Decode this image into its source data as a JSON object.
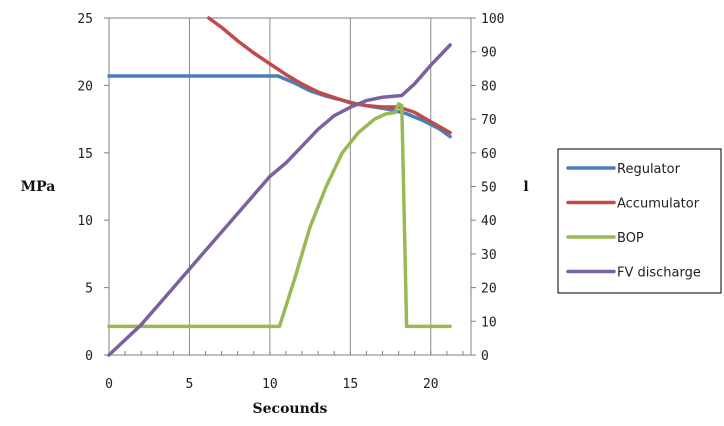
{
  "chart_data": {
    "type": "line",
    "xlabel": "Secounds",
    "ylabel": "MPa",
    "y2label": "l",
    "xlim": [
      0,
      22.5
    ],
    "ylim": [
      0,
      25
    ],
    "y2lim": [
      0,
      100
    ],
    "x_ticks": [
      "0",
      "5",
      "10",
      "15",
      "20"
    ],
    "y_ticks": [
      "0",
      "5",
      "10",
      "15",
      "20",
      "25"
    ],
    "y2_ticks": [
      "0",
      "10",
      "20",
      "30",
      "40",
      "50",
      "60",
      "70",
      "80",
      "90",
      "100"
    ],
    "grid": "vertical",
    "legend_position": "right",
    "series": [
      {
        "name": "Regulator",
        "color": "#4a7ebb",
        "axis": "left",
        "points": [
          [
            0,
            20.7
          ],
          [
            10.5,
            20.7
          ],
          [
            11.5,
            20.2
          ],
          [
            12.5,
            19.6
          ],
          [
            13.5,
            19.2
          ],
          [
            14.5,
            18.9
          ],
          [
            15.5,
            18.6
          ],
          [
            16.5,
            18.4
          ],
          [
            17.5,
            18.2
          ],
          [
            18.5,
            17.9
          ],
          [
            19.5,
            17.4
          ],
          [
            20.5,
            16.8
          ],
          [
            21.2,
            16.2
          ]
        ]
      },
      {
        "name": "Accumulator",
        "color": "#be4b48",
        "axis": "left",
        "points": [
          [
            6.2,
            25.0
          ],
          [
            7.0,
            24.3
          ],
          [
            8.0,
            23.3
          ],
          [
            9.0,
            22.4
          ],
          [
            10.0,
            21.6
          ],
          [
            11.0,
            20.8
          ],
          [
            12.0,
            20.1
          ],
          [
            13.0,
            19.5
          ],
          [
            14.0,
            19.1
          ],
          [
            15.0,
            18.7
          ],
          [
            16.0,
            18.5
          ],
          [
            17.0,
            18.4
          ],
          [
            18.0,
            18.4
          ],
          [
            19.0,
            18.0
          ],
          [
            20.0,
            17.3
          ],
          [
            21.2,
            16.5
          ]
        ]
      },
      {
        "name": "BOP",
        "color": "#98b954",
        "axis": "right",
        "points": [
          [
            0,
            8.5
          ],
          [
            10.6,
            8.5
          ],
          [
            11.5,
            22
          ],
          [
            12.5,
            38
          ],
          [
            13.5,
            50
          ],
          [
            14.5,
            60
          ],
          [
            15.5,
            66
          ],
          [
            16.5,
            70
          ],
          [
            17.2,
            71.5
          ],
          [
            17.8,
            72
          ],
          [
            18.0,
            74.5
          ],
          [
            18.2,
            74
          ],
          [
            18.5,
            8.5
          ],
          [
            21.2,
            8.5
          ]
        ]
      },
      {
        "name": "FV discharge",
        "color": "#7d60a0",
        "axis": "right",
        "points": [
          [
            0,
            0
          ],
          [
            2,
            9
          ],
          [
            4,
            20
          ],
          [
            6,
            31
          ],
          [
            8,
            42
          ],
          [
            10,
            53
          ],
          [
            11,
            57
          ],
          [
            12,
            62
          ],
          [
            13,
            67
          ],
          [
            14,
            71
          ],
          [
            15,
            73.5
          ],
          [
            16,
            75.5
          ],
          [
            17,
            76.5
          ],
          [
            18.2,
            77
          ],
          [
            19,
            80.5
          ],
          [
            20,
            86
          ],
          [
            21.2,
            92
          ]
        ]
      }
    ]
  }
}
